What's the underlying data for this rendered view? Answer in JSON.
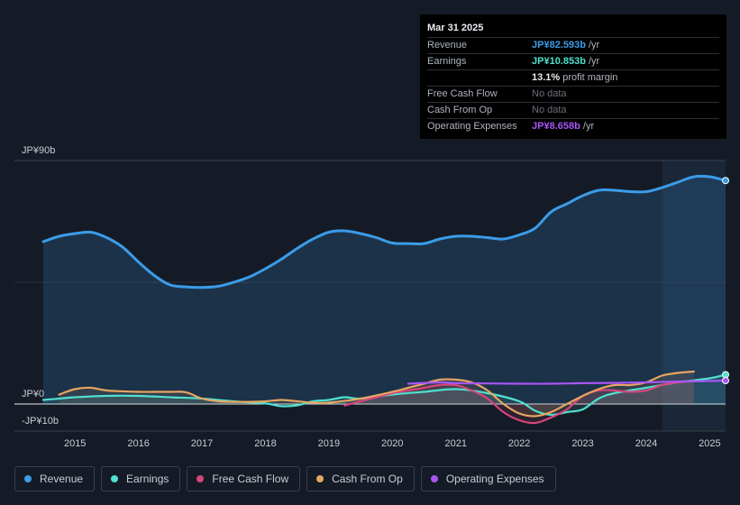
{
  "tooltip": {
    "date": "Mar 31 2025",
    "rows": [
      {
        "label": "Revenue",
        "value": "JP¥82.593b",
        "unit": " /yr",
        "color": "#3b9ce8"
      },
      {
        "label": "Earnings",
        "value": "JP¥10.853b",
        "unit": " /yr",
        "color": "#4fe0cf"
      },
      {
        "label": "",
        "value": "13.1%",
        "unit": " profit margin",
        "color": "#e8eaee"
      },
      {
        "label": "Free Cash Flow",
        "value": "No data",
        "unit": "",
        "color": "#6a707a"
      },
      {
        "label": "Cash From Op",
        "value": "No data",
        "unit": "",
        "color": "#6a707a"
      },
      {
        "label": "Operating Expenses",
        "value": "JP¥8.658b",
        "unit": " /yr",
        "color": "#a855f7"
      }
    ]
  },
  "legend": [
    {
      "label": "Revenue",
      "color": "#3b9ce8"
    },
    {
      "label": "Earnings",
      "color": "#4fe0cf"
    },
    {
      "label": "Free Cash Flow",
      "color": "#d6457a"
    },
    {
      "label": "Cash From Op",
      "color": "#e6a560"
    },
    {
      "label": "Operating Expenses",
      "color": "#a855f7"
    }
  ],
  "chart_data": {
    "type": "line",
    "title": "",
    "xlabel": "",
    "ylabel": "",
    "x_tick_labels": [
      "2015",
      "2016",
      "2017",
      "2018",
      "2019",
      "2020",
      "2021",
      "2022",
      "2023",
      "2024",
      "2025"
    ],
    "x_tick_values": [
      2015,
      2016,
      2017,
      2018,
      2019,
      2020,
      2021,
      2022,
      2023,
      2024,
      2025
    ],
    "y_tick_labels": [
      "JP¥90b",
      "JP¥0",
      "-JP¥10b"
    ],
    "y_tick_values": [
      90,
      0,
      -10
    ],
    "xlim": [
      2014.5,
      2025.25
    ],
    "ylim": [
      -10,
      90
    ],
    "highlight_from": 2024.25,
    "series": [
      {
        "name": "Revenue",
        "color": "#3b9ce8",
        "area": true,
        "points": [
          [
            2014.5,
            60
          ],
          [
            2014.75,
            62
          ],
          [
            2015,
            63
          ],
          [
            2015.25,
            63.5
          ],
          [
            2015.5,
            61.5
          ],
          [
            2015.75,
            58
          ],
          [
            2016,
            52.5
          ],
          [
            2016.25,
            47.5
          ],
          [
            2016.5,
            44
          ],
          [
            2016.75,
            43.3
          ],
          [
            2017,
            43.1
          ],
          [
            2017.25,
            43.5
          ],
          [
            2017.5,
            45
          ],
          [
            2017.75,
            47
          ],
          [
            2018,
            50
          ],
          [
            2018.25,
            53.5
          ],
          [
            2018.5,
            57.5
          ],
          [
            2018.75,
            61
          ],
          [
            2019,
            63.5
          ],
          [
            2019.25,
            64
          ],
          [
            2019.5,
            63
          ],
          [
            2019.75,
            61.5
          ],
          [
            2020,
            59.5
          ],
          [
            2020.25,
            59.3
          ],
          [
            2020.5,
            59.3
          ],
          [
            2020.75,
            61
          ],
          [
            2021,
            62
          ],
          [
            2021.25,
            62
          ],
          [
            2021.5,
            61.5
          ],
          [
            2021.75,
            61
          ],
          [
            2022,
            62.5
          ],
          [
            2022.25,
            65
          ],
          [
            2022.5,
            71
          ],
          [
            2022.75,
            74
          ],
          [
            2023,
            77
          ],
          [
            2023.25,
            79
          ],
          [
            2023.5,
            79
          ],
          [
            2023.75,
            78.5
          ],
          [
            2024,
            78.5
          ],
          [
            2024.25,
            80
          ],
          [
            2024.5,
            82
          ],
          [
            2024.75,
            84
          ],
          [
            2025,
            84
          ],
          [
            2025.25,
            82.593
          ]
        ]
      },
      {
        "name": "Earnings",
        "color": "#4fe0cf",
        "area": true,
        "points": [
          [
            2014.5,
            1.5
          ],
          [
            2014.75,
            2
          ],
          [
            2015,
            2.5
          ],
          [
            2015.5,
            3
          ],
          [
            2016,
            3
          ],
          [
            2016.5,
            2.5
          ],
          [
            2017,
            2
          ],
          [
            2017.5,
            1
          ],
          [
            2018,
            0.2
          ],
          [
            2018.25,
            -0.8
          ],
          [
            2018.5,
            -0.5
          ],
          [
            2018.75,
            1
          ],
          [
            2019,
            1.5
          ],
          [
            2019.25,
            2.5
          ],
          [
            2019.5,
            2
          ],
          [
            2020,
            3.5
          ],
          [
            2020.5,
            4.5
          ],
          [
            2021,
            5.5
          ],
          [
            2021.5,
            4
          ],
          [
            2022,
            1
          ],
          [
            2022.25,
            -2.5
          ],
          [
            2022.5,
            -4
          ],
          [
            2022.75,
            -3
          ],
          [
            2023,
            -2
          ],
          [
            2023.25,
            2
          ],
          [
            2023.5,
            4
          ],
          [
            2024,
            6
          ],
          [
            2024.5,
            8
          ],
          [
            2025,
            9.5
          ],
          [
            2025.25,
            10.853
          ]
        ]
      },
      {
        "name": "Free Cash Flow",
        "color": "#d6457a",
        "area": true,
        "points": [
          [
            2019.25,
            -0.5
          ],
          [
            2019.5,
            1
          ],
          [
            2019.75,
            2.5
          ],
          [
            2020,
            4
          ],
          [
            2020.25,
            5
          ],
          [
            2020.5,
            6
          ],
          [
            2020.75,
            7
          ],
          [
            2021,
            7
          ],
          [
            2021.25,
            5
          ],
          [
            2021.5,
            2
          ],
          [
            2021.75,
            -3
          ],
          [
            2022,
            -6
          ],
          [
            2022.25,
            -7
          ],
          [
            2022.5,
            -5
          ],
          [
            2022.75,
            -2
          ],
          [
            2023,
            3
          ],
          [
            2023.25,
            5
          ],
          [
            2023.5,
            5
          ],
          [
            2023.75,
            4.5
          ],
          [
            2024,
            5
          ],
          [
            2024.25,
            7
          ],
          [
            2024.5,
            8
          ],
          [
            2024.75,
            8.5
          ]
        ]
      },
      {
        "name": "Cash From Op",
        "color": "#e6a560",
        "area": true,
        "points": [
          [
            2014.75,
            3.5
          ],
          [
            2015,
            5.5
          ],
          [
            2015.25,
            6
          ],
          [
            2015.5,
            5
          ],
          [
            2016,
            4.5
          ],
          [
            2016.5,
            4.5
          ],
          [
            2016.75,
            4.3
          ],
          [
            2017,
            2
          ],
          [
            2017.25,
            1
          ],
          [
            2017.5,
            0.8
          ],
          [
            2017.75,
            0.8
          ],
          [
            2018,
            1
          ],
          [
            2018.25,
            1.5
          ],
          [
            2018.5,
            1
          ],
          [
            2018.75,
            0.5
          ],
          [
            2019,
            0.5
          ],
          [
            2019.5,
            2
          ],
          [
            2020,
            4.5
          ],
          [
            2020.25,
            6
          ],
          [
            2020.5,
            7.5
          ],
          [
            2020.75,
            9
          ],
          [
            2021,
            9
          ],
          [
            2021.25,
            8
          ],
          [
            2021.5,
            5
          ],
          [
            2021.75,
            0
          ],
          [
            2022,
            -3.5
          ],
          [
            2022.25,
            -4.5
          ],
          [
            2022.5,
            -3
          ],
          [
            2022.75,
            0
          ],
          [
            2023,
            3
          ],
          [
            2023.25,
            5.5
          ],
          [
            2023.5,
            7
          ],
          [
            2023.75,
            7
          ],
          [
            2024,
            8
          ],
          [
            2024.25,
            10.5
          ],
          [
            2024.5,
            11.5
          ],
          [
            2024.75,
            12
          ]
        ]
      },
      {
        "name": "Operating Expenses",
        "color": "#a855f7",
        "area": false,
        "points": [
          [
            2020.25,
            7.5
          ],
          [
            2020.75,
            8
          ],
          [
            2021,
            7.7
          ],
          [
            2021.5,
            7.6
          ],
          [
            2022,
            7.5
          ],
          [
            2022.5,
            7.5
          ],
          [
            2023,
            7.7
          ],
          [
            2023.5,
            7.8
          ],
          [
            2024,
            8
          ],
          [
            2024.5,
            8.3
          ],
          [
            2025,
            8.5
          ],
          [
            2025.25,
            8.658
          ]
        ]
      }
    ]
  }
}
